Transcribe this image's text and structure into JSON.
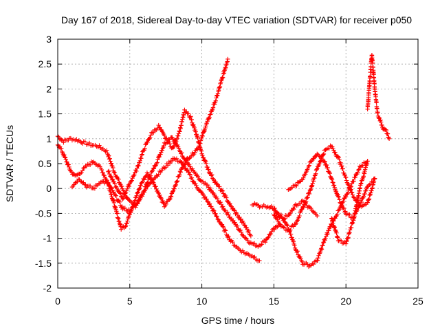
{
  "chart_data": {
    "type": "scatter",
    "title": "Day 167 of 2018, Sidereal Day-to-day VTEC variation (SDTVAR) for receiver p050",
    "xlabel": "GPS time / hours",
    "ylabel": "SDTVAR / TECUs",
    "xlim": [
      0,
      25
    ],
    "ylim": [
      -2,
      3
    ],
    "xticks": [
      "0",
      "5",
      "10",
      "15",
      "20",
      "25"
    ],
    "yticks": [
      "-2",
      "-1.5",
      "-1",
      "-0.5",
      "0",
      "0.5",
      "1",
      "1.5",
      "2",
      "2.5",
      "3"
    ],
    "grid": true,
    "marker": "+",
    "color": "#ff0000",
    "series": [
      {
        "name": "s1",
        "x": [
          0.0,
          0.4,
          0.9,
          1.3,
          1.8,
          2.3,
          2.8,
          3.4,
          3.9,
          4.4,
          4.9,
          5.4,
          5.9,
          6.4,
          6.9,
          7.4,
          7.9,
          8.4,
          8.9,
          9.4,
          9.9,
          10.4,
          10.9,
          11.4,
          11.9,
          12.4,
          12.9,
          13.4,
          13.9,
          14.4,
          14.9,
          15.3
        ],
        "y": [
          1.05,
          0.95,
          1.0,
          0.98,
          0.92,
          0.88,
          0.85,
          0.75,
          0.35,
          0.05,
          -0.25,
          -0.35,
          -0.1,
          0.25,
          0.55,
          0.9,
          1.05,
          0.8,
          0.55,
          0.35,
          0.15,
          0.05,
          -0.15,
          -0.35,
          -0.55,
          -0.75,
          -0.95,
          -1.1,
          -1.15,
          -1.05,
          -0.85,
          -0.75
        ]
      },
      {
        "name": "s2",
        "x": [
          0.0,
          0.3,
          0.6,
          0.9,
          1.2,
          1.5,
          2.0,
          2.5,
          3.0,
          3.5,
          3.8,
          4.1,
          4.4,
          4.7,
          5.0,
          5.4,
          5.8,
          6.2,
          6.6,
          7.0,
          7.4,
          7.8,
          8.2,
          8.6,
          9.0,
          9.4,
          9.8,
          10.2,
          10.6,
          11.0,
          11.4,
          11.8
        ],
        "y": [
          0.9,
          0.75,
          0.55,
          0.35,
          0.25,
          0.3,
          0.45,
          0.55,
          0.4,
          0.1,
          -0.2,
          -0.5,
          -0.8,
          -0.75,
          -0.5,
          -0.2,
          0.1,
          0.3,
          0.15,
          -0.1,
          -0.35,
          -0.2,
          0.1,
          0.4,
          0.6,
          0.7,
          0.85,
          1.2,
          1.5,
          1.8,
          2.2,
          2.6
        ]
      },
      {
        "name": "s3",
        "x": [
          1.0,
          1.5,
          2.0,
          2.5,
          3.0,
          3.5,
          4.0,
          4.5,
          5.0,
          5.5,
          6.0,
          6.5,
          7.0,
          7.5,
          8.0,
          8.5,
          9.0,
          9.5,
          10.0,
          10.5,
          11.0,
          11.5,
          12.0,
          12.5,
          13.0,
          13.5,
          14.0
        ],
        "y": [
          0.05,
          0.2,
          0.05,
          0.0,
          0.15,
          0.1,
          -0.15,
          -0.4,
          -0.45,
          -0.3,
          -0.05,
          0.15,
          0.3,
          0.45,
          0.6,
          0.55,
          0.35,
          0.1,
          -0.1,
          -0.3,
          -0.55,
          -0.8,
          -1.05,
          -1.2,
          -1.3,
          -1.35,
          -1.45
        ]
      },
      {
        "name": "s4",
        "x": [
          3.5,
          4.0,
          4.5,
          5.0,
          5.5,
          6.0,
          6.5,
          7.0,
          7.5,
          8.0,
          8.5,
          8.8,
          9.2,
          9.6,
          10.0,
          10.5,
          11.0,
          11.5,
          12.0,
          12.5,
          13.0,
          13.4
        ],
        "y": [
          0.35,
          0.05,
          -0.2,
          0.1,
          0.4,
          0.8,
          1.1,
          1.25,
          1.0,
          0.8,
          1.2,
          1.55,
          1.45,
          1.1,
          0.7,
          0.35,
          0.1,
          -0.1,
          -0.35,
          -0.55,
          -0.75,
          -0.95
        ]
      },
      {
        "name": "s5",
        "x": [
          13.5,
          14.0,
          14.5,
          15.0,
          15.5,
          16.0,
          16.5,
          17.0,
          17.5,
          18.0,
          18.5,
          19.0,
          19.5,
          20.0,
          20.5,
          21.0,
          21.5
        ],
        "y": [
          -0.3,
          -0.35,
          -0.35,
          -0.4,
          -0.55,
          -0.8,
          -1.2,
          -1.5,
          -1.55,
          -1.45,
          -1.05,
          -0.7,
          -0.45,
          -0.15,
          0.15,
          0.45,
          0.55
        ]
      },
      {
        "name": "s6",
        "x": [
          15.0,
          15.5,
          16.0,
          16.5,
          17.0,
          17.5,
          18.0,
          18.5,
          19.0,
          19.5,
          20.0,
          20.5,
          21.0,
          21.5,
          22.0
        ],
        "y": [
          -0.5,
          -0.75,
          -0.85,
          -0.7,
          -0.4,
          -0.05,
          0.4,
          0.75,
          0.85,
          0.6,
          0.2,
          -0.15,
          -0.35,
          -0.3,
          0.2
        ]
      },
      {
        "name": "s7",
        "x": [
          16.0,
          16.5,
          17.0,
          17.5,
          18.0,
          18.5,
          19.0,
          19.5,
          20.0,
          20.5,
          21.0,
          21.5,
          22.0
        ],
        "y": [
          0.0,
          0.05,
          0.2,
          0.5,
          0.7,
          0.55,
          0.2,
          -0.2,
          -0.5,
          -0.6,
          -0.3,
          0.05,
          0.2
        ]
      },
      {
        "name": "s8",
        "x": [
          15.0,
          15.5,
          16.0,
          16.5,
          17.0,
          17.5,
          18.0
        ],
        "y": [
          -0.4,
          -0.6,
          -0.55,
          -0.35,
          -0.25,
          -0.4,
          -0.55
        ]
      },
      {
        "name": "s9",
        "x": [
          19.0,
          19.5,
          20.0,
          20.5,
          21.0,
          21.5
        ],
        "y": [
          -0.6,
          -1.05,
          -1.1,
          -0.65,
          0.05,
          0.55
        ]
      },
      {
        "name": "s10",
        "x": [
          21.5,
          21.8,
          22.0,
          22.2,
          22.4,
          22.6,
          22.8,
          23.0
        ],
        "y": [
          1.6,
          2.7,
          2.0,
          1.5,
          1.35,
          1.2,
          1.15,
          1.0
        ]
      }
    ]
  }
}
